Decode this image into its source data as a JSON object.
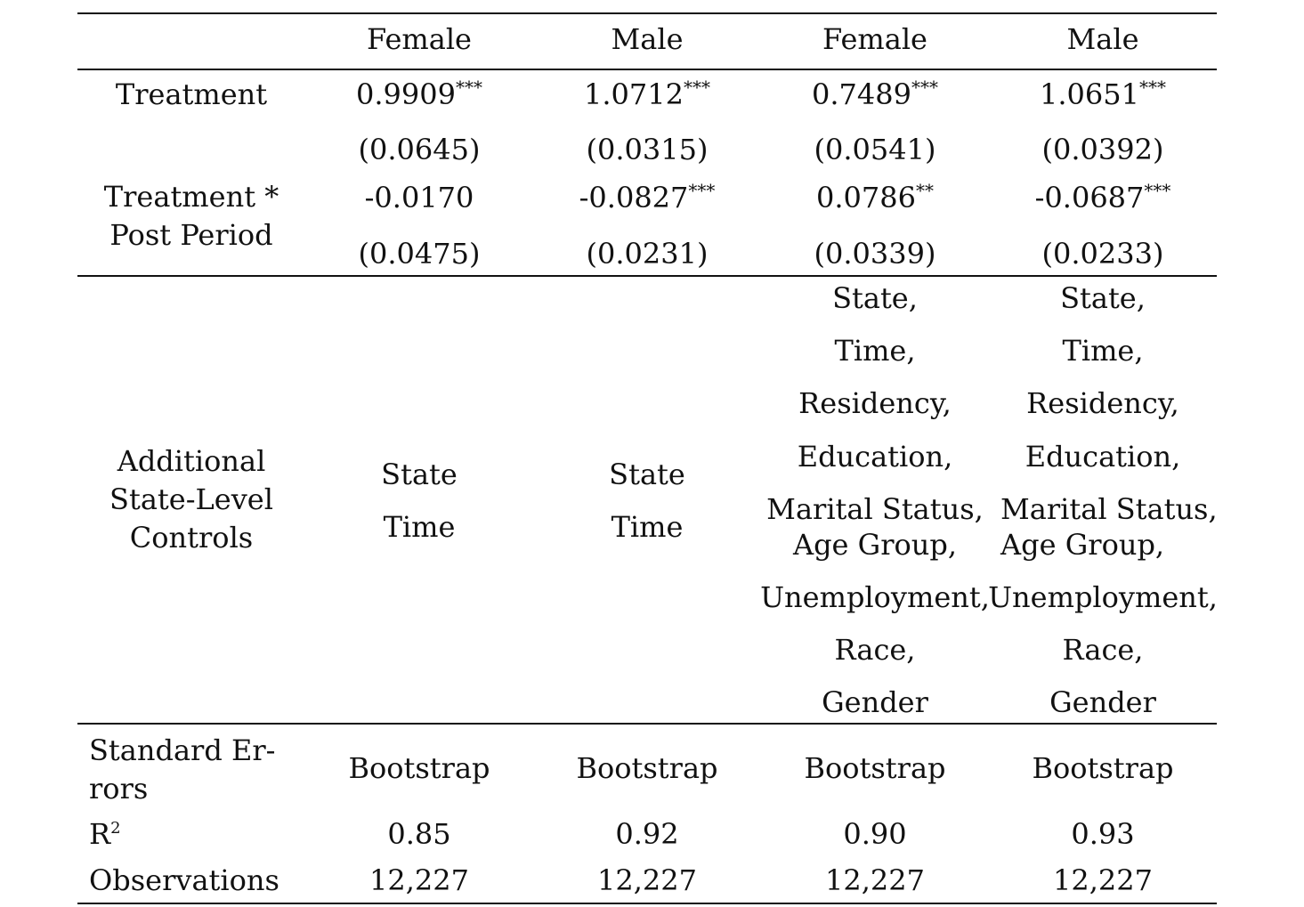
{
  "columns": [
    "Female",
    "Male",
    "Female",
    "Male"
  ],
  "treatment": {
    "label": "Treatment",
    "coefs": [
      "0.9909",
      "1.0712",
      "0.7489",
      "1.0651"
    ],
    "stars": [
      "***",
      "***",
      "***",
      "***"
    ],
    "se": [
      "(0.0645)",
      "(0.0315)",
      "(0.0541)",
      "(0.0392)"
    ]
  },
  "interaction": {
    "label_line1": "Treatment *",
    "label_line2": "Post Period",
    "coefs": [
      "-0.0170",
      "-0.0827",
      "0.0786",
      "-0.0687"
    ],
    "stars": [
      "",
      "***",
      "**",
      "***"
    ],
    "se": [
      "(0.0475)",
      "(0.0231)",
      "(0.0339)",
      "(0.0233)"
    ]
  },
  "controls": {
    "label_line1": "Additional",
    "label_line2": "State-Level",
    "label_line3": "Controls",
    "col1": [
      "State",
      "Time"
    ],
    "col2": [
      "State",
      "Time"
    ],
    "col3": [
      "State,",
      "Time,",
      "Residency,",
      "Education,",
      "Marital Status,",
      "Age Group,",
      "Unemployment,",
      "Race,",
      "Gender"
    ],
    "col4": [
      "State,",
      "Time,",
      "Residency,",
      "Education,",
      "Marital Status,",
      "Age Group,",
      "Unemployment,",
      "Race,",
      "Gender"
    ]
  },
  "standard_errors": {
    "label_line1": "Standard Er-",
    "label_line2": "rors",
    "values": [
      "Bootstrap",
      "Bootstrap",
      "Bootstrap",
      "Bootstrap"
    ]
  },
  "r2": {
    "label": "R",
    "label_sup": "2",
    "values": [
      "0.85",
      "0.92",
      "0.90",
      "0.93"
    ]
  },
  "observations": {
    "label": "Observations",
    "values": [
      "12,227",
      "12,227",
      "12,227",
      "12,227"
    ]
  }
}
